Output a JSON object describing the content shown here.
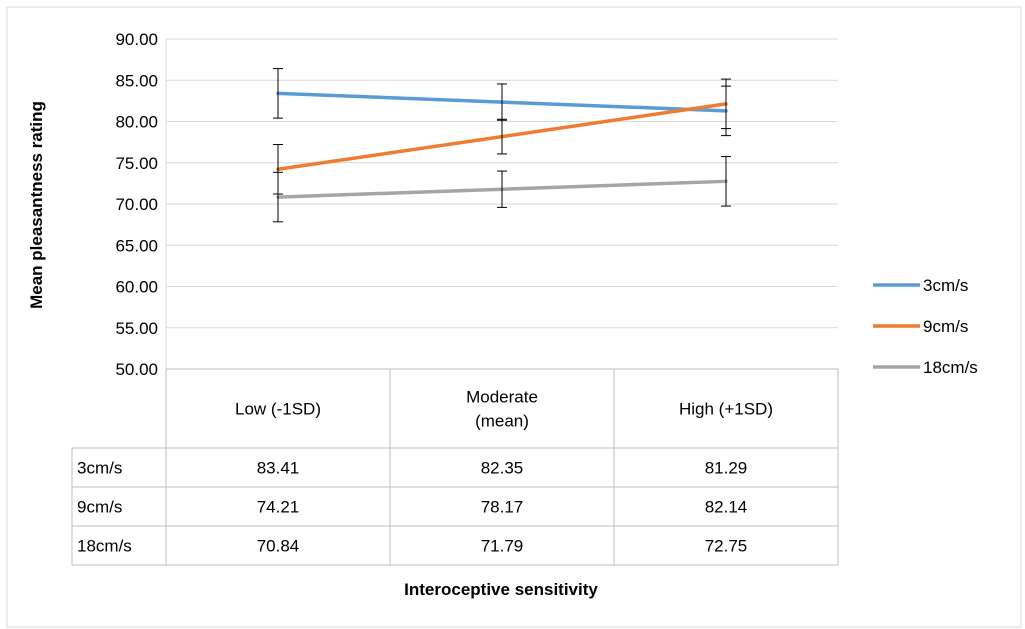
{
  "chart_data": {
    "type": "line",
    "title": "",
    "xlabel": "Interoceptive sensitivity",
    "ylabel": "Mean pleasantness rating",
    "ylim": [
      50,
      90
    ],
    "yticks": [
      "50.00",
      "55.00",
      "60.00",
      "65.00",
      "70.00",
      "75.00",
      "80.00",
      "85.00",
      "90.00"
    ],
    "categories": [
      "Low (-1SD)",
      "Moderate (mean)",
      "High (+1SD)"
    ],
    "category_lines": [
      [
        "Low (-1SD)"
      ],
      [
        "Moderate",
        "(mean)"
      ],
      [
        "High (+1SD)"
      ]
    ],
    "grid": true,
    "legend_position": "right",
    "data_table": true,
    "error_bars": true,
    "series": [
      {
        "name": "3cm/s",
        "color": "#5B9BD5",
        "values": [
          83.41,
          82.35,
          81.29
        ],
        "labels": [
          "83.41",
          "82.35",
          "81.29"
        ],
        "error": [
          3.0,
          2.2,
          3.0
        ]
      },
      {
        "name": "9cm/s",
        "color": "#ED7D31",
        "values": [
          74.21,
          78.17,
          82.14
        ],
        "labels": [
          "74.21",
          "78.17",
          "82.14"
        ],
        "error": [
          3.0,
          2.1,
          3.0
        ]
      },
      {
        "name": "18cm/s",
        "color": "#A5A5A5",
        "values": [
          70.84,
          71.79,
          72.75
        ],
        "labels": [
          "70.84",
          "71.79",
          "72.75"
        ],
        "error": [
          3.0,
          2.2,
          3.0
        ]
      }
    ]
  }
}
